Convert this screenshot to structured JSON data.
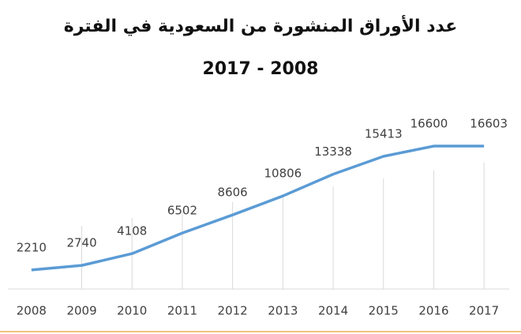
{
  "chart_data": {
    "type": "line",
    "title": "عدد الأوراق المنشورة من السعودية في الفترة",
    "subtitle": "2017 - 2008",
    "categories": [
      "2008",
      "2009",
      "2010",
      "2011",
      "2012",
      "2013",
      "2014",
      "2015",
      "2016",
      "2017"
    ],
    "values": [
      2210,
      2740,
      4108,
      6502,
      8606,
      10806,
      13338,
      15413,
      16600,
      16603
    ],
    "color": "#5b9bd5"
  }
}
